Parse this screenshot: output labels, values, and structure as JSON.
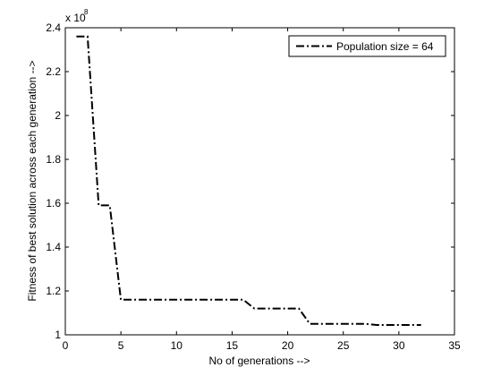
{
  "chart_data": {
    "type": "line",
    "title": "",
    "xlabel": "No of generations -->",
    "ylabel": "Fitness of best solution across each generation  -->",
    "exponent_base": "x 10",
    "exponent_power": "8",
    "xlim": [
      0,
      35
    ],
    "ylim": [
      1.0,
      2.4
    ],
    "xticks": [
      0,
      5,
      10,
      15,
      20,
      25,
      30,
      35
    ],
    "yticks": [
      1,
      1.2,
      1.4,
      1.6,
      1.8,
      2,
      2.2,
      2.4
    ],
    "xtick_labels": [
      "0",
      "5",
      "10",
      "15",
      "20",
      "25",
      "30",
      "35"
    ],
    "ytick_labels": [
      "1",
      "1.2",
      "1.4",
      "1.6",
      "1.8",
      "2",
      "2.2",
      "2.4"
    ],
    "grid": false,
    "legend_position": "top-right",
    "series": [
      {
        "name": "Population size = 64",
        "line_style": "dash-dot",
        "color": "#000000",
        "x": [
          1,
          2,
          3,
          4,
          5,
          6,
          7,
          8,
          9,
          10,
          11,
          12,
          13,
          14,
          15,
          16,
          17,
          18,
          19,
          20,
          21,
          22,
          23,
          24,
          25,
          26,
          27,
          28,
          29,
          30,
          31,
          32
        ],
        "y": [
          2.36,
          2.36,
          1.59,
          1.59,
          1.16,
          1.16,
          1.16,
          1.16,
          1.16,
          1.16,
          1.16,
          1.16,
          1.16,
          1.16,
          1.16,
          1.16,
          1.12,
          1.12,
          1.12,
          1.12,
          1.12,
          1.05,
          1.05,
          1.05,
          1.05,
          1.05,
          1.05,
          1.045,
          1.045,
          1.045,
          1.045,
          1.045
        ]
      }
    ]
  }
}
